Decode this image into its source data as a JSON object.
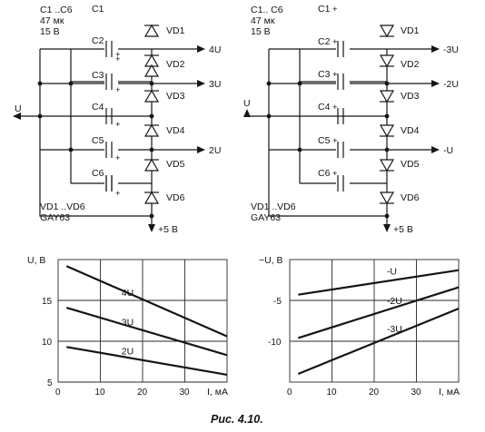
{
  "caption": "Рис. 4.10.",
  "circuits": [
    {
      "cap_note": [
        "C1 ..C6",
        "47 мк",
        "15 В"
      ],
      "diode_note": [
        "VD1 ..VD6",
        "GAY63"
      ],
      "caps": [
        "C1",
        "C2",
        "C3",
        "C4",
        "C5",
        "C6"
      ],
      "plus_mark": "+",
      "diodes": [
        "VD1",
        "VD2",
        "VD3",
        "VD4",
        "VD5",
        "VD6"
      ],
      "input": "U",
      "outputs": [
        "4U",
        "3U",
        "2U"
      ],
      "supply": "+5 В"
    },
    {
      "cap_note": [
        "C1.. C6",
        "47 мк",
        "15 В"
      ],
      "diode_note": [
        "VD1 ..VD6",
        "GAY63"
      ],
      "caps": [
        "C1",
        "C2",
        "C3",
        "C4",
        "C5",
        "C6"
      ],
      "plus_mark": "+",
      "diodes": [
        "VD1",
        "VD2",
        "VD3",
        "VD4",
        "VD5",
        "VD6"
      ],
      "input": "U",
      "outputs": [
        "-3U",
        "-2U",
        "-U"
      ],
      "supply": "+5 В"
    }
  ],
  "chart_data": [
    {
      "type": "line",
      "ylabel": "U, В",
      "xlabel": "I, мА",
      "xlim": [
        0,
        40
      ],
      "ylim": [
        5,
        20
      ],
      "xticks": [
        "0",
        "10",
        "20",
        "30"
      ],
      "yticks": [
        "5",
        "10",
        "15"
      ],
      "grid": true,
      "series": [
        {
          "name": "4U",
          "x": [
            2,
            40
          ],
          "y": [
            19.2,
            10.6
          ]
        },
        {
          "name": "3U",
          "x": [
            2,
            40
          ],
          "y": [
            14.1,
            8.3
          ]
        },
        {
          "name": "2U",
          "x": [
            2,
            40
          ],
          "y": [
            9.3,
            5.9
          ]
        }
      ]
    },
    {
      "type": "line",
      "ylabel": "−U, В",
      "xlabel": "I, мА",
      "xlim": [
        0,
        40
      ],
      "ylim": [
        -15,
        0
      ],
      "xticks": [
        "0",
        "10",
        "20",
        "30"
      ],
      "yticks": [
        "-10",
        "-5"
      ],
      "grid": true,
      "series": [
        {
          "name": "-3U",
          "x": [
            2,
            40
          ],
          "y": [
            -14.0,
            -6.0
          ]
        },
        {
          "name": "-2U",
          "x": [
            2,
            40
          ],
          "y": [
            -9.6,
            -3.4
          ]
        },
        {
          "name": "-U",
          "x": [
            2,
            40
          ],
          "y": [
            -4.3,
            -1.3
          ]
        }
      ]
    }
  ]
}
